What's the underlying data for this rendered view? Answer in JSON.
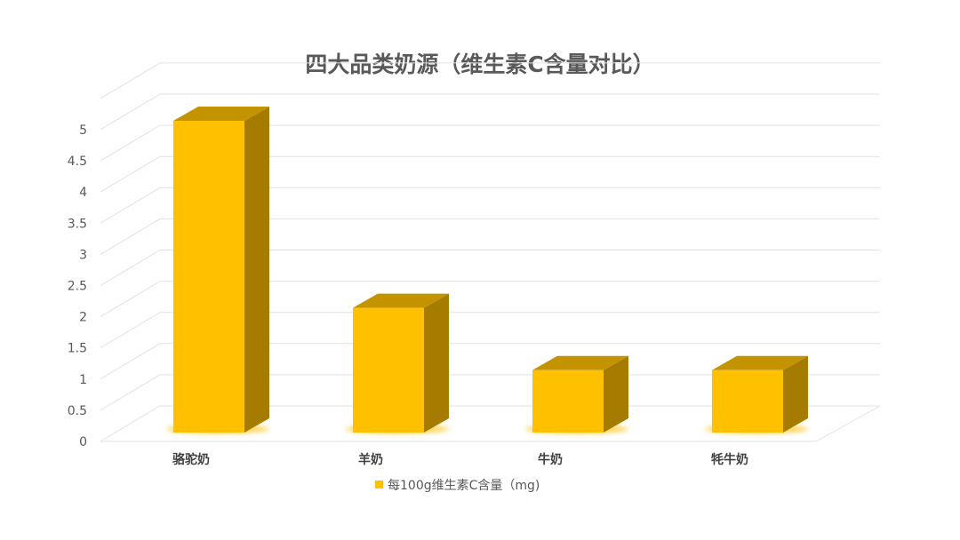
{
  "chart_data": {
    "type": "bar",
    "style": "3d-column",
    "title": "四大品类奶源（维生素C含量对比）",
    "categories": [
      "骆驼奶",
      "羊奶",
      "牛奶",
      "牦牛奶"
    ],
    "series": [
      {
        "name": "每100g维生素C含量（mg)",
        "values": [
          5,
          2,
          1,
          1
        ],
        "color": "#FFC000"
      }
    ],
    "yticks": [
      "0",
      "0.5",
      "1",
      "1.5",
      "2",
      "2.5",
      "3",
      "3.5",
      "4",
      "4.5",
      "5"
    ],
    "ylim": [
      0,
      5.5
    ],
    "grid": true,
    "legend": "bottom",
    "colors": {
      "front": "#FFC000",
      "top": "#C49400",
      "side": "#A67C00",
      "grid": "#E2E2E2",
      "text": "#595959"
    }
  }
}
